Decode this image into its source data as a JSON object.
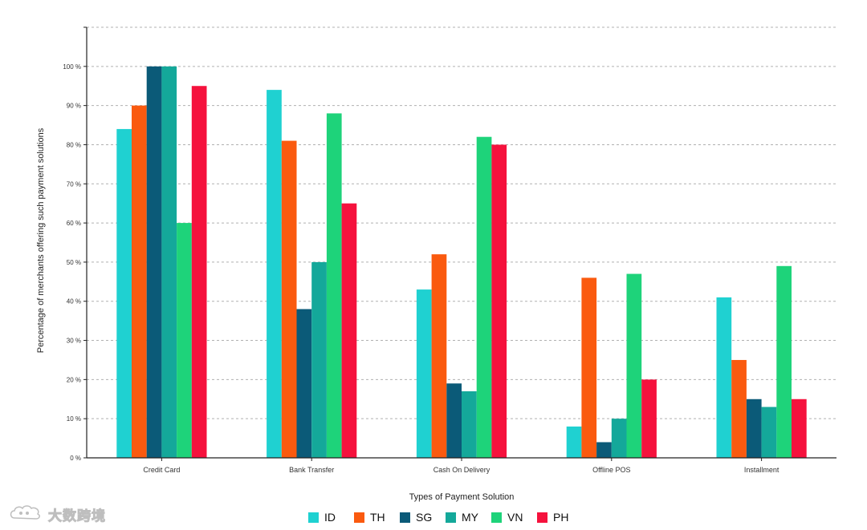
{
  "chart_data": {
    "type": "bar",
    "title": "",
    "xlabel": "Types of Payment Solution",
    "ylabel": "Percentage of merchants offering such payment solutions",
    "ylim": [
      0,
      110
    ],
    "yticks": [
      0,
      10,
      20,
      30,
      40,
      50,
      60,
      70,
      80,
      90,
      100
    ],
    "ytick_labels": [
      "0 %",
      "10 %",
      "20 %",
      "30 %",
      "40 %",
      "50 %",
      "60 %",
      "70 %",
      "80 %",
      "90 %",
      "100 %"
    ],
    "grid": true,
    "legend_position": "bottom-center",
    "categories": [
      "Credit Card",
      "Bank Transfer",
      "Cash On Delivery",
      "Offline POS",
      "Installment"
    ],
    "series": [
      {
        "name": "ID",
        "color": "#1fd1d1",
        "values": [
          84,
          94,
          43,
          8,
          41
        ]
      },
      {
        "name": "TH",
        "color": "#fa5a0f",
        "values": [
          90,
          81,
          52,
          46,
          25
        ]
      },
      {
        "name": "SG",
        "color": "#0b5a78",
        "values": [
          100,
          38,
          19,
          4,
          15
        ]
      },
      {
        "name": "MY",
        "color": "#14a89a",
        "values": [
          100,
          50,
          17,
          10,
          13
        ]
      },
      {
        "name": "VN",
        "color": "#1ed37a",
        "values": [
          60,
          88,
          82,
          47,
          49
        ]
      },
      {
        "name": "PH",
        "color": "#f5123d",
        "values": [
          95,
          65,
          80,
          20,
          15
        ]
      }
    ]
  },
  "watermark": {
    "text": "大数跨境",
    "icon": "cloud-logo-icon"
  }
}
